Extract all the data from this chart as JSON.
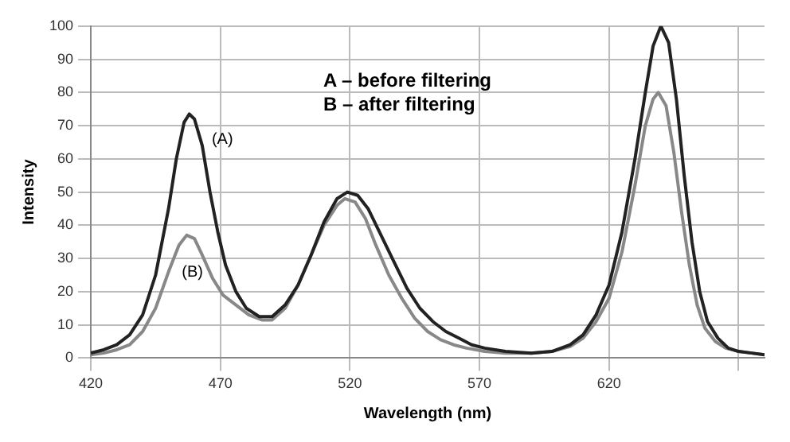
{
  "chart_data": {
    "type": "line",
    "xlabel": "Wavelength (nm)",
    "ylabel": "Intensity",
    "xlim": [
      420,
      680
    ],
    "xticks": [
      420,
      470,
      520,
      570,
      620,
      {
        "value": 670,
        "label": null
      }
    ],
    "ylim": [
      0,
      100
    ],
    "yticks": [
      0,
      10,
      20,
      30,
      40,
      50,
      60,
      70,
      80,
      90,
      100
    ],
    "grid": true,
    "legend": false,
    "marker": "none",
    "line_style": "solid",
    "annotations": [
      "A – before filtering",
      "B – after filtering",
      {
        "text": "(A)",
        "x": 463,
        "y": 64
      },
      {
        "text": "(B)",
        "x": 467,
        "y": 24
      }
    ],
    "series": [
      {
        "color": "#222222",
        "x": [
          420,
          425,
          430,
          435,
          440,
          445,
          450,
          453,
          456,
          458,
          460,
          463,
          466,
          469,
          472,
          476,
          480,
          485,
          490,
          495,
          500,
          505,
          510,
          515,
          519,
          523,
          527,
          532,
          537,
          542,
          547,
          552,
          557,
          562,
          567,
          572,
          580,
          590,
          598,
          605,
          610,
          615,
          620,
          625,
          630,
          634,
          637,
          640,
          643,
          646,
          649,
          652,
          655,
          658,
          662,
          666,
          670,
          675,
          680
        ],
        "values": [
          1.5,
          2.5,
          4,
          7,
          13,
          25,
          45,
          60,
          71,
          73.5,
          72,
          64,
          50,
          38,
          28,
          20,
          15,
          12.5,
          12.5,
          16,
          22,
          31,
          41,
          48,
          50,
          49,
          45,
          37,
          29,
          21,
          15,
          11,
          8,
          6,
          4,
          3,
          2,
          1.5,
          2,
          4,
          7,
          13,
          22,
          38,
          60,
          80,
          94,
          100,
          95,
          78,
          55,
          35,
          20,
          11,
          6,
          3,
          2,
          1.5,
          1
        ]
      },
      {
        "color": "#888888",
        "x": [
          420,
          425,
          430,
          435,
          440,
          445,
          450,
          454,
          457,
          460,
          463,
          467,
          471,
          476,
          481,
          486,
          490,
          495,
          500,
          505,
          510,
          515,
          518,
          522,
          526,
          530,
          535,
          540,
          545,
          550,
          555,
          560,
          565,
          572,
          580,
          590,
          598,
          605,
          610,
          615,
          620,
          625,
          630,
          634,
          637,
          639,
          642,
          645,
          648,
          651,
          654,
          657,
          661,
          665,
          670,
          675,
          680
        ],
        "values": [
          1,
          1.5,
          2.5,
          4,
          8,
          15,
          26,
          34,
          37,
          36,
          31,
          24,
          19,
          16,
          13,
          11.5,
          11.5,
          15,
          22,
          31,
          40,
          46,
          48,
          47,
          42,
          34,
          25,
          18,
          12,
          8,
          5.5,
          4,
          3,
          2,
          1.5,
          1.5,
          2,
          3.5,
          6,
          11,
          18,
          32,
          52,
          70,
          78,
          80,
          76,
          62,
          44,
          28,
          16,
          9,
          5,
          3,
          2,
          1.5,
          1
        ]
      }
    ]
  }
}
